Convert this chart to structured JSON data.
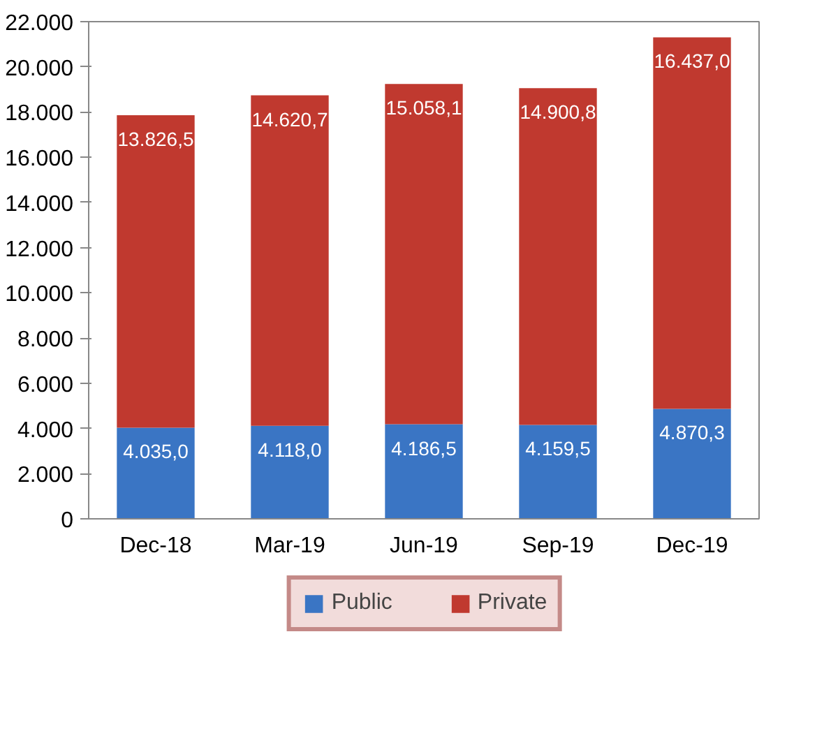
{
  "chart_data": {
    "type": "bar",
    "stacked": true,
    "categories": [
      "Dec-18",
      "Mar-19",
      "Jun-19",
      "Sep-19",
      "Dec-19"
    ],
    "series": [
      {
        "name": "Public",
        "color": "#3a75c4",
        "values": [
          4035.0,
          4118.0,
          4186.5,
          4159.5,
          4870.3
        ],
        "value_labels": [
          "4.035,0",
          "4.118,0",
          "4.186,5",
          "4.159,5",
          "4.870,3"
        ]
      },
      {
        "name": "Private",
        "color": "#c0392f",
        "values": [
          13826.5,
          14620.7,
          15058.1,
          14900.8,
          16437.0
        ],
        "value_labels": [
          "13.826,5",
          "14.620,7",
          "15.058,1",
          "14.900,8",
          "16.437,0"
        ]
      }
    ],
    "ylim": [
      0,
      22000
    ],
    "yticks": [
      {
        "value": 0,
        "label": "0"
      },
      {
        "value": 2000,
        "label": "2.000"
      },
      {
        "value": 4000,
        "label": "4.000"
      },
      {
        "value": 6000,
        "label": "6.000"
      },
      {
        "value": 8000,
        "label": "8.000"
      },
      {
        "value": 10000,
        "label": "10.000"
      },
      {
        "value": 12000,
        "label": "12.000"
      },
      {
        "value": 14000,
        "label": "14.000"
      },
      {
        "value": 16000,
        "label": "16.000"
      },
      {
        "value": 18000,
        "label": "18.000"
      },
      {
        "value": 20000,
        "label": "20.000"
      },
      {
        "value": 22000,
        "label": "22.000"
      }
    ],
    "grid": false,
    "legend": "bottom"
  }
}
